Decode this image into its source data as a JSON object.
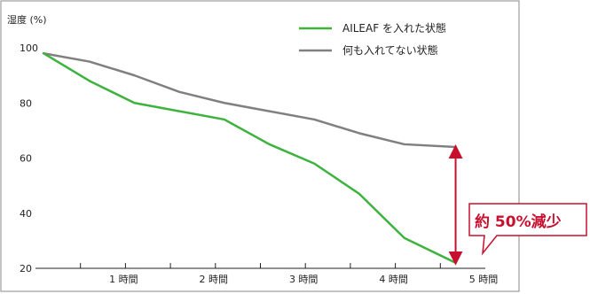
{
  "chart_data": {
    "type": "line",
    "ylabel": "湿度 (%)",
    "xlabel": "",
    "ylim": [
      20,
      100
    ],
    "y_ticks": [
      "100",
      "80",
      "60",
      "40",
      "20"
    ],
    "x_ticks": [
      "1 時間",
      "2 時間",
      "3 時間",
      "4 時間",
      "5 時間"
    ],
    "xlim": [
      0,
      5
    ],
    "grid": false,
    "legend_position": "top-right",
    "series": [
      {
        "name": "AILEAF を入れた状態",
        "color": "#3db33d",
        "x": [
          0.09,
          0.6,
          1.1,
          1.6,
          2.1,
          2.6,
          3.1,
          3.6,
          4.1,
          4.67
        ],
        "values": [
          98,
          88,
          80,
          77,
          74,
          65,
          58,
          47,
          31,
          22
        ]
      },
      {
        "name": "何も入れてない状態",
        "color": "#808080",
        "x": [
          0.09,
          0.6,
          1.1,
          1.6,
          2.1,
          2.6,
          3.1,
          3.6,
          4.1,
          4.67
        ],
        "values": [
          98,
          95,
          90,
          84,
          80,
          77,
          74,
          69,
          65,
          64
        ]
      }
    ],
    "annotation": {
      "text": "約 50%減少",
      "color": "#c8102e",
      "x": 4.67,
      "from": 64,
      "to": 22
    }
  }
}
